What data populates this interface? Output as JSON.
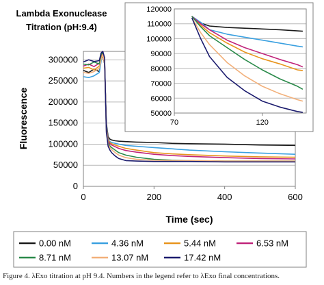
{
  "caption": "Figure 4. λExo titration at pH 9.4. Numbers in the legend refer to λExo final concentrations.",
  "chart_data": [
    {
      "type": "line",
      "title_lines": [
        "Lambda Exonuclease",
        "Titration (pH:9.4)"
      ],
      "xlabel": "Time (sec)",
      "ylabel": "Fluorescence",
      "xlim": [
        0,
        600
      ],
      "ylim": [
        0,
        320000
      ],
      "xticks": [
        0,
        200,
        400,
        600
      ],
      "yticks": [
        0,
        50000,
        100000,
        150000,
        200000,
        250000,
        300000
      ],
      "xtick_labels": [
        "0",
        "200",
        "400",
        "600"
      ],
      "ytick_labels": [
        "0",
        "50000",
        "100000",
        "150000",
        "200000",
        "250000",
        "300000"
      ],
      "grid": "horizontal",
      "legend_position": "bottom",
      "series": [
        {
          "name": "0.00 nM",
          "color": "#1a1a1a",
          "x": [
            0,
            15,
            30,
            45,
            50,
            55,
            60,
            65,
            70,
            75,
            80,
            90,
            100,
            120,
            150,
            200,
            250,
            300,
            400,
            500,
            600
          ],
          "y": [
            275000,
            270000,
            278000,
            272000,
            300000,
            310000,
            290000,
            150000,
            118000,
            112000,
            110000,
            108000,
            107000,
            106000,
            105000,
            104000,
            102000,
            101000,
            100000,
            98000,
            97000
          ]
        },
        {
          "name": "4.36 nM",
          "color": "#3aa0e0",
          "x": [
            0,
            15,
            30,
            45,
            50,
            55,
            60,
            65,
            70,
            75,
            80,
            90,
            100,
            120,
            150,
            200,
            250,
            300,
            400,
            500,
            600
          ],
          "y": [
            260000,
            258000,
            262000,
            270000,
            295000,
            318000,
            300000,
            145000,
            112000,
            106000,
            104000,
            102000,
            100000,
            97000,
            95000,
            92000,
            89000,
            86000,
            82000,
            79000,
            76000
          ]
        },
        {
          "name": "5.44 nM",
          "color": "#e8951e",
          "x": [
            0,
            15,
            30,
            45,
            50,
            55,
            60,
            65,
            70,
            75,
            80,
            90,
            100,
            120,
            150,
            200,
            250,
            300,
            400,
            500,
            600
          ],
          "y": [
            280000,
            282000,
            276000,
            285000,
            305000,
            315000,
            298000,
            140000,
            110000,
            104000,
            101000,
            98000,
            95000,
            90000,
            86000,
            80000,
            77000,
            75000,
            72000,
            70000,
            69000
          ]
        },
        {
          "name": "6.53 nM",
          "color": "#c0247a",
          "x": [
            0,
            15,
            30,
            45,
            50,
            55,
            60,
            65,
            70,
            75,
            80,
            90,
            100,
            120,
            150,
            200,
            250,
            300,
            400,
            500,
            600
          ],
          "y": [
            285000,
            290000,
            284000,
            292000,
            310000,
            320000,
            300000,
            138000,
            108000,
            101000,
            98000,
            94000,
            90000,
            85000,
            81000,
            76000,
            73000,
            71000,
            68000,
            66000,
            65000
          ]
        },
        {
          "name": "8.71 nM",
          "color": "#2a8a4a",
          "x": [
            0,
            15,
            30,
            45,
            50,
            55,
            60,
            65,
            70,
            75,
            80,
            90,
            100,
            120,
            150,
            200,
            250,
            300,
            400,
            500,
            600
          ],
          "y": [
            290000,
            288000,
            295000,
            290000,
            312000,
            318000,
            296000,
            135000,
            104000,
            96000,
            92000,
            86000,
            80000,
            74000,
            69000,
            64000,
            62000,
            61000,
            60000,
            60000,
            60000
          ]
        },
        {
          "name": "13.07 nM",
          "color": "#f2b07a",
          "x": [
            0,
            15,
            30,
            45,
            50,
            55,
            60,
            65,
            70,
            75,
            80,
            90,
            100,
            120,
            150,
            200,
            250,
            300,
            400,
            500,
            600
          ],
          "y": [
            270000,
            268000,
            272000,
            280000,
            300000,
            312000,
            292000,
            132000,
            100000,
            92000,
            87000,
            80000,
            74000,
            68000,
            64000,
            62000,
            61000,
            61000,
            60000,
            60000,
            60000
          ]
        },
        {
          "name": "17.42 nM",
          "color": "#1c1c6e",
          "x": [
            0,
            15,
            30,
            45,
            50,
            55,
            60,
            65,
            70,
            75,
            80,
            90,
            100,
            120,
            150,
            200,
            250,
            300,
            400,
            500,
            600
          ],
          "y": [
            295000,
            300000,
            296000,
            298000,
            316000,
            320000,
            305000,
            128000,
            95000,
            86000,
            80000,
            72000,
            66000,
            61000,
            60000,
            59000,
            59000,
            59000,
            58000,
            58000,
            58000
          ]
        }
      ]
    },
    {
      "type": "line",
      "role": "inset",
      "xlim": [
        70,
        145
      ],
      "ylim": [
        50000,
        120000
      ],
      "xticks": [
        70,
        120
      ],
      "yticks": [
        50000,
        60000,
        70000,
        80000,
        90000,
        100000,
        110000,
        120000
      ],
      "xtick_labels": [
        "70",
        "120"
      ],
      "ytick_labels": [
        "50000",
        "60000",
        "70000",
        "80000",
        "90000",
        "100000",
        "110000",
        "120000"
      ],
      "grid": "horizontal",
      "series": [
        {
          "name": "0.00 nM",
          "color": "#1a1a1a",
          "x": [
            80,
            85,
            90,
            100,
            110,
            120,
            130,
            140,
            143
          ],
          "y": [
            115000,
            110500,
            108500,
            107500,
            107000,
            106500,
            106000,
            105200,
            105000
          ]
        },
        {
          "name": "4.36 nM",
          "color": "#3aa0e0",
          "x": [
            80,
            85,
            90,
            100,
            110,
            120,
            130,
            140,
            143
          ],
          "y": [
            115000,
            111000,
            106000,
            103000,
            101000,
            99000,
            97000,
            95000,
            94500
          ]
        },
        {
          "name": "5.44 nM",
          "color": "#e8951e",
          "x": [
            80,
            85,
            90,
            100,
            110,
            120,
            130,
            140,
            143
          ],
          "y": [
            115000,
            109000,
            104000,
            97000,
            91000,
            86500,
            83000,
            79000,
            78500
          ]
        },
        {
          "name": "6.53 nM",
          "color": "#c0247a",
          "x": [
            80,
            85,
            90,
            100,
            110,
            120,
            130,
            140,
            143
          ],
          "y": [
            115000,
            110000,
            106000,
            99000,
            94000,
            90000,
            86000,
            82500,
            81000
          ]
        },
        {
          "name": "8.71 nM",
          "color": "#2a8a4a",
          "x": [
            80,
            85,
            90,
            100,
            110,
            120,
            130,
            140,
            143
          ],
          "y": [
            115000,
            108000,
            102000,
            94000,
            86000,
            79000,
            73000,
            68000,
            66000
          ]
        },
        {
          "name": "13.07 nM",
          "color": "#f2b07a",
          "x": [
            80,
            85,
            90,
            100,
            110,
            120,
            130,
            140,
            143
          ],
          "y": [
            114000,
            104000,
            96000,
            84000,
            75000,
            68000,
            63000,
            59000,
            58000
          ]
        },
        {
          "name": "17.42 nM",
          "color": "#1c1c6e",
          "x": [
            80,
            85,
            90,
            100,
            110,
            120,
            130,
            140,
            143
          ],
          "y": [
            114000,
            100000,
            88000,
            74000,
            65000,
            58000,
            54000,
            51000,
            50500
          ]
        }
      ]
    }
  ]
}
